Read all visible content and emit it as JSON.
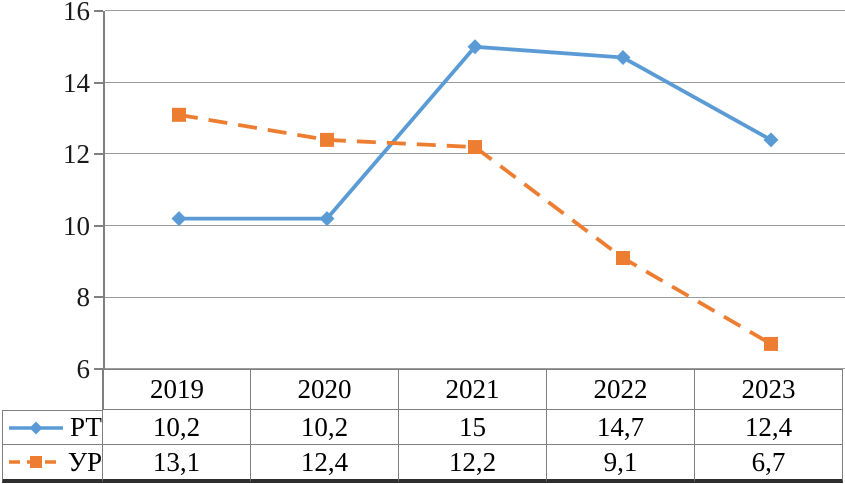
{
  "chart_data": {
    "type": "line",
    "title": "",
    "xlabel": "",
    "ylabel": "",
    "categories": [
      "2019",
      "2020",
      "2021",
      "2022",
      "2023"
    ],
    "series": [
      {
        "name": "РТ",
        "values": [
          10.2,
          10.2,
          15,
          14.7,
          12.4
        ],
        "display_values": [
          "10,2",
          "10,2",
          "15",
          "14,7",
          "12,4"
        ],
        "color": "#5B9BD5",
        "marker": "diamond",
        "line_style": "solid"
      },
      {
        "name": "УР",
        "values": [
          13.1,
          12.4,
          12.2,
          9.1,
          6.7
        ],
        "display_values": [
          "13,1",
          "12,4",
          "12,2",
          "9,1",
          "6,7"
        ],
        "color": "#ED7D31",
        "marker": "square",
        "line_style": "dashed"
      }
    ],
    "ylim": [
      6,
      16
    ],
    "yticks": [
      16,
      14,
      12,
      10,
      8,
      6
    ],
    "grid": true,
    "legend_position": "table-left"
  },
  "colors": {
    "series_blue": "#5B9BD5",
    "series_orange": "#ED7D31",
    "gridline": "#9b9b9b",
    "axis": "#808080",
    "table_border": "#7f7f7f",
    "outer_bottom_border": "#2e2e2e",
    "background": "#ffffff",
    "text": "#000000"
  }
}
